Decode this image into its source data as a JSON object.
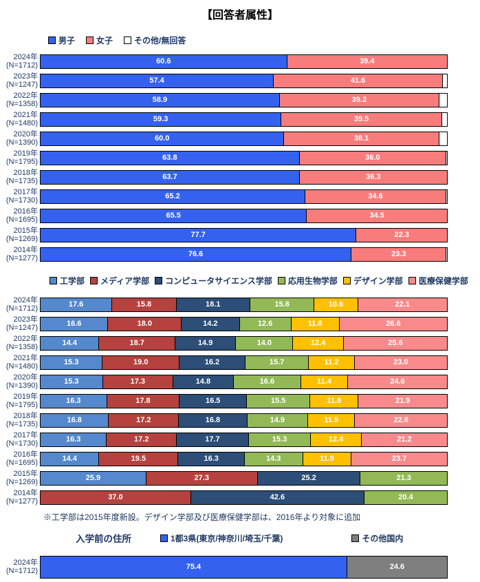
{
  "page": {
    "title": "【回答者属性】",
    "footnote": "※工学部は2015年度新設。デザイン学部及び医療保健学部は、2016年より対象に追加"
  },
  "colors": {
    "label_navy": "#1F3864",
    "bar_border": "#000000"
  },
  "chart_data": [
    {
      "id": "gender",
      "type": "bar",
      "stacked": true,
      "orientation": "horizontal",
      "legend_position": "top",
      "value_format": "one-decimal-percent",
      "xlim": [
        0,
        100
      ],
      "series": [
        {
          "name": "男子",
          "color": "#3462EF",
          "show_label": true
        },
        {
          "name": "女子",
          "color": "#F97C7C",
          "show_label": true
        },
        {
          "name": "その他/無回答",
          "color": "#FFFFFF",
          "show_label": false
        }
      ],
      "rows": [
        {
          "year": "2024年",
          "n": "(N=1712)",
          "values": [
            60.6,
            39.4,
            0
          ]
        },
        {
          "year": "2023年",
          "n": "(N=1247)",
          "values": [
            57.4,
            41.6,
            1.0
          ]
        },
        {
          "year": "2022年",
          "n": "(N=1358)",
          "values": [
            58.9,
            39.2,
            1.9
          ]
        },
        {
          "year": "2021年",
          "n": "(N=1480)",
          "values": [
            59.3,
            39.5,
            1.2
          ]
        },
        {
          "year": "2020年",
          "n": "(N=1390)",
          "values": [
            60.0,
            38.1,
            1.9
          ]
        },
        {
          "year": "2019年",
          "n": "(N=1795)",
          "values": [
            63.8,
            36.0,
            0.2
          ]
        },
        {
          "year": "2018年",
          "n": "(N=1735)",
          "values": [
            63.7,
            36.3,
            0
          ]
        },
        {
          "year": "2017年",
          "n": "(N=1730)",
          "values": [
            65.2,
            34.6,
            0.2
          ]
        },
        {
          "year": "2016年",
          "n": "(N=1695)",
          "values": [
            65.5,
            34.5,
            0
          ]
        },
        {
          "year": "2015年",
          "n": "(N=1269)",
          "values": [
            77.7,
            22.3,
            0
          ]
        },
        {
          "year": "2014年",
          "n": "(N=1277)",
          "values": [
            76.6,
            23.3,
            0.1
          ]
        }
      ]
    },
    {
      "id": "faculty",
      "type": "bar",
      "stacked": true,
      "orientation": "horizontal",
      "legend_position": "top",
      "value_format": "one-decimal-percent",
      "xlim": [
        0,
        100
      ],
      "series": [
        {
          "name": "工学部",
          "color": "#5588CC",
          "show_label": true
        },
        {
          "name": "メディア学部",
          "color": "#B5423E",
          "show_label": true
        },
        {
          "name": "コンピュータサイエンス学部",
          "color": "#2C4E77",
          "show_label": true
        },
        {
          "name": "応用生物学部",
          "color": "#93B957",
          "show_label": true
        },
        {
          "name": "デザイン学部",
          "color": "#FFC000",
          "show_label": true
        },
        {
          "name": "医療保健学部",
          "color": "#F98A8B",
          "show_label": true
        }
      ],
      "rows": [
        {
          "year": "2024年",
          "n": "(N=1712)",
          "values": [
            17.6,
            15.8,
            18.1,
            15.8,
            10.6,
            22.1
          ]
        },
        {
          "year": "2023年",
          "n": "(N=1247)",
          "values": [
            16.6,
            18.0,
            14.2,
            12.6,
            11.8,
            26.6
          ]
        },
        {
          "year": "2022年",
          "n": "(N=1358)",
          "values": [
            14.4,
            18.7,
            14.9,
            14.0,
            12.4,
            25.6
          ]
        },
        {
          "year": "2021年",
          "n": "(N=1480)",
          "values": [
            15.3,
            19.0,
            16.2,
            15.7,
            11.2,
            23.0
          ]
        },
        {
          "year": "2020年",
          "n": "(N=1390)",
          "values": [
            15.3,
            17.3,
            14.8,
            16.6,
            11.4,
            24.6
          ]
        },
        {
          "year": "2019年",
          "n": "(N=1795)",
          "values": [
            16.3,
            17.8,
            16.5,
            15.5,
            11.8,
            21.9
          ]
        },
        {
          "year": "2018年",
          "n": "(N=1735)",
          "values": [
            16.8,
            17.2,
            16.8,
            14.9,
            11.5,
            22.8
          ]
        },
        {
          "year": "2017年",
          "n": "(N=1730)",
          "values": [
            16.3,
            17.2,
            17.7,
            15.3,
            12.4,
            21.2
          ]
        },
        {
          "year": "2016年",
          "n": "(N=1695)",
          "values": [
            14.4,
            19.5,
            16.3,
            14.3,
            11.9,
            23.7
          ]
        },
        {
          "year": "2015年",
          "n": "(N=1269)",
          "values": [
            25.9,
            27.3,
            25.2,
            21.3,
            null,
            null
          ]
        },
        {
          "year": "2014年",
          "n": "(N=1277)",
          "values": [
            null,
            37.0,
            42.6,
            20.4,
            null,
            null
          ]
        }
      ]
    },
    {
      "id": "address",
      "type": "bar",
      "stacked": true,
      "orientation": "horizontal",
      "title": "入学前の住所",
      "legend_position": "top",
      "value_format": "one-decimal-percent",
      "xlim": [
        0,
        100
      ],
      "series": [
        {
          "name": "1都3県(東京/神奈川/埼玉/千葉)",
          "color": "#3462EF",
          "show_label": true
        },
        {
          "name": "その他国内",
          "color": "#7F7F7F",
          "show_label": true
        }
      ],
      "rows": [
        {
          "year": "2024年",
          "n": "(N=1712)",
          "values": [
            75.4,
            24.6
          ]
        }
      ]
    }
  ]
}
